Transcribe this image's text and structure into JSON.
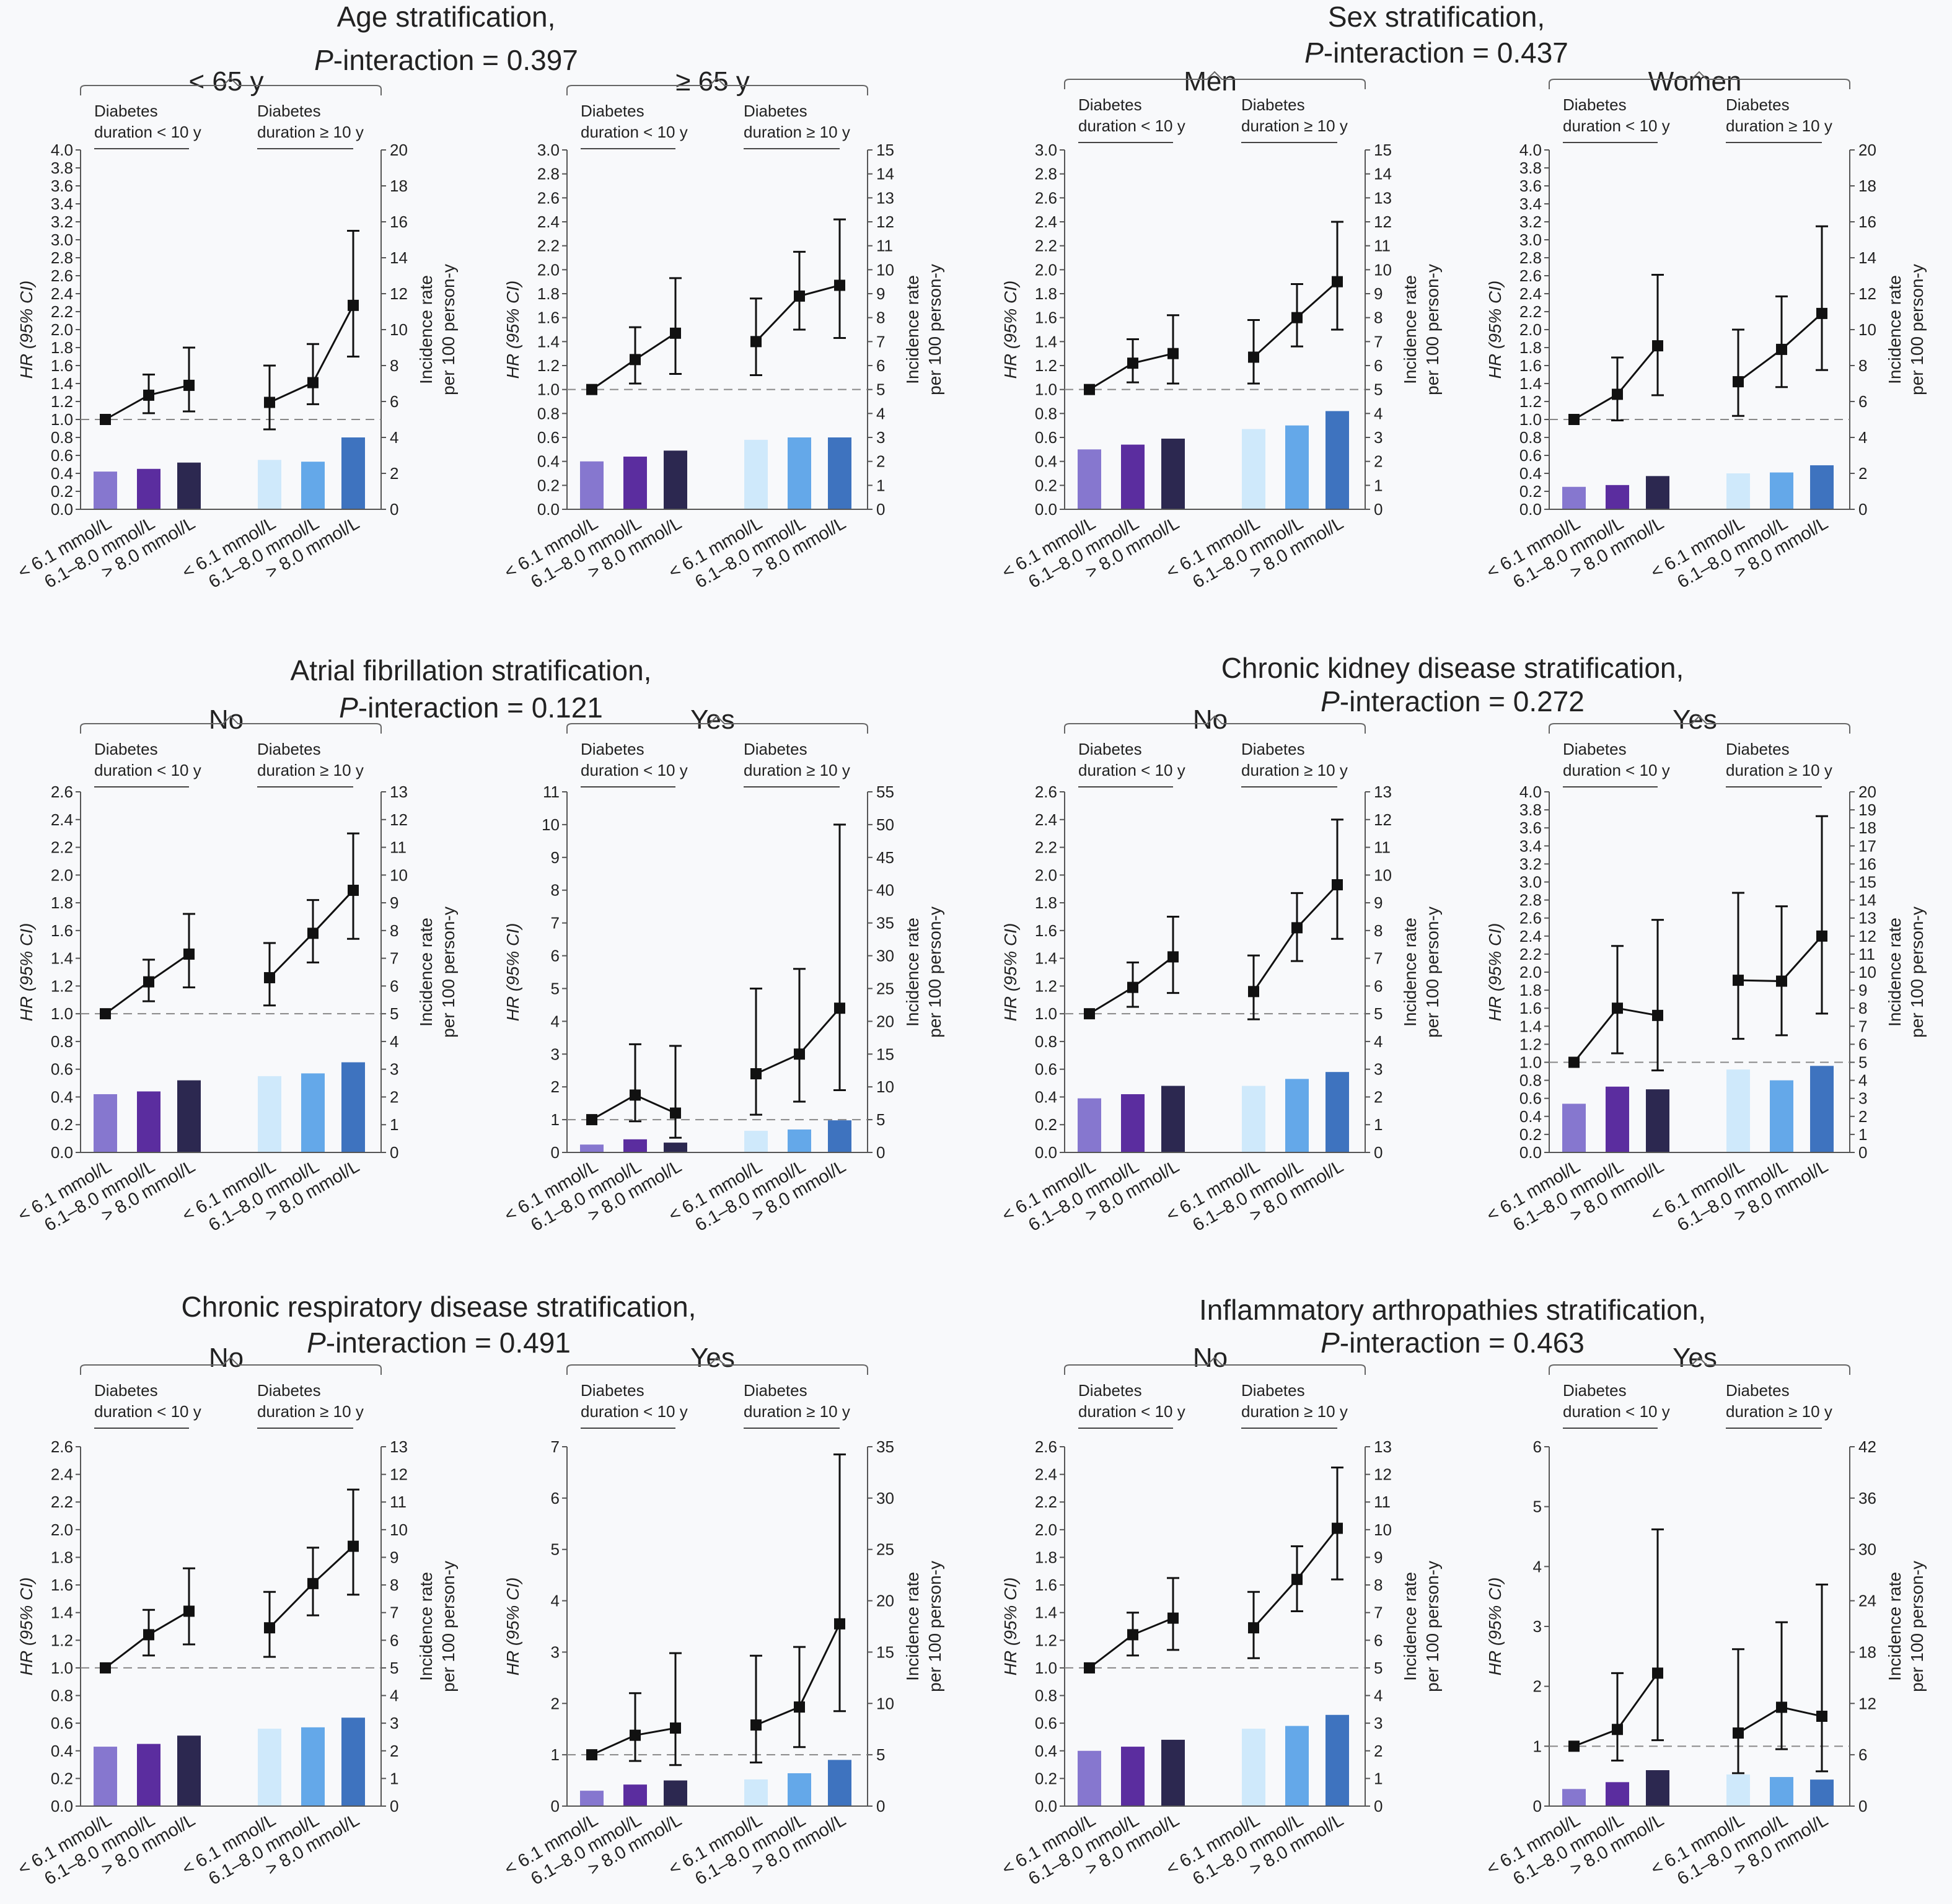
{
  "strata_labels": {
    "hr_axis": "HR (95% CI)",
    "ir_axis_line1": "Incidence rate",
    "ir_axis_line2": "per 100 person-y",
    "group_short_line1": "Diabetes",
    "group_short_line2": "duration < 10 y",
    "group_long_line1": "Diabetes",
    "group_long_line2": "duration ≥ 10 y",
    "categories": [
      "< 6.1 mmol/L",
      "6.1–8.0 mmol/L",
      "> 8.0 mmol/L"
    ]
  },
  "colors": {
    "bars": [
      "#8677cf",
      "#5b2d9f",
      "#2c2850",
      "#cfe9fb",
      "#64a8e9",
      "#3e73bf"
    ],
    "line": "#111111"
  },
  "panels": [
    {
      "title_line1": "Age stratification,",
      "title_line2_italic": "P",
      "title_line2_rest": "-interaction = 0.397",
      "subgroups": [
        "< 65 y",
        "≥ 65 y"
      ]
    },
    {
      "title_line1": "Sex stratification,",
      "title_line2_italic": "P",
      "title_line2_rest": "-interaction = 0.437",
      "subgroups": [
        "Men",
        "Women"
      ]
    },
    {
      "title_line1": "Atrial fibrillation stratification,",
      "title_line2_italic": "P",
      "title_line2_rest": "-interaction = 0.121",
      "subgroups": [
        "No",
        "Yes"
      ]
    },
    {
      "title_line1": "Chronic kidney disease stratification,",
      "title_line2_italic": "P",
      "title_line2_rest": "-interaction = 0.272",
      "subgroups": [
        "No",
        "Yes"
      ]
    },
    {
      "title_line1": "Chronic respiratory disease stratification,",
      "title_line2_italic": "P",
      "title_line2_rest": "-interaction = 0.491",
      "subgroups": [
        "No",
        "Yes"
      ]
    },
    {
      "title_line1": "Inflammatory arthropathies stratification,",
      "title_line2_italic": "P",
      "title_line2_rest": "-interaction = 0.463",
      "subgroups": [
        "No",
        "Yes"
      ]
    }
  ],
  "chart_data": [
    {
      "type": "line+bar",
      "panel": "Age",
      "subgroup": "< 65 y",
      "hr_axis": {
        "min": 0,
        "max": 4.0,
        "step": 0.2
      },
      "ir_axis": {
        "min": 0,
        "max": 20,
        "step": 2
      },
      "hr": [
        1.0,
        1.27,
        1.38,
        1.19,
        1.41,
        2.27
      ],
      "hr_low": [
        1.0,
        1.07,
        1.09,
        0.89,
        1.17,
        1.7
      ],
      "hr_high": [
        1.0,
        1.5,
        1.8,
        1.6,
        1.84,
        3.1
      ],
      "incidence": [
        2.1,
        2.25,
        2.6,
        2.75,
        2.65,
        4.0
      ]
    },
    {
      "type": "line+bar",
      "panel": "Age",
      "subgroup": "≥ 65 y",
      "hr_axis": {
        "min": 0,
        "max": 3.0,
        "step": 0.2
      },
      "ir_axis": {
        "min": 0,
        "max": 15,
        "step": 1
      },
      "hr": [
        1.0,
        1.25,
        1.47,
        1.4,
        1.78,
        1.87
      ],
      "hr_low": [
        1.0,
        1.05,
        1.13,
        1.12,
        1.5,
        1.43
      ],
      "hr_high": [
        1.0,
        1.52,
        1.93,
        1.76,
        2.15,
        2.42
      ],
      "incidence": [
        2.0,
        2.2,
        2.45,
        2.9,
        3.0,
        3.0
      ]
    },
    {
      "type": "line+bar",
      "panel": "Sex",
      "subgroup": "Men",
      "hr_axis": {
        "min": 0,
        "max": 3.0,
        "step": 0.2
      },
      "ir_axis": {
        "min": 0,
        "max": 15,
        "step": 1
      },
      "hr": [
        1.0,
        1.22,
        1.3,
        1.27,
        1.6,
        1.9
      ],
      "hr_low": [
        1.0,
        1.06,
        1.05,
        1.05,
        1.36,
        1.5
      ],
      "hr_high": [
        1.0,
        1.42,
        1.62,
        1.58,
        1.88,
        2.4
      ],
      "incidence": [
        2.5,
        2.7,
        2.95,
        3.35,
        3.5,
        4.1
      ]
    },
    {
      "type": "line+bar",
      "panel": "Sex",
      "subgroup": "Women",
      "hr_axis": {
        "min": 0,
        "max": 4.0,
        "step": 0.2
      },
      "ir_axis": {
        "min": 0,
        "max": 20,
        "step": 2
      },
      "hr": [
        1.0,
        1.28,
        1.82,
        1.42,
        1.78,
        2.18
      ],
      "hr_low": [
        1.0,
        0.99,
        1.27,
        1.04,
        1.36,
        1.55
      ],
      "hr_high": [
        1.0,
        1.69,
        2.61,
        2.0,
        2.37,
        3.15
      ],
      "incidence": [
        1.25,
        1.35,
        1.85,
        2.0,
        2.05,
        2.45
      ]
    },
    {
      "type": "line+bar",
      "panel": "Atrial fibrillation",
      "subgroup": "No",
      "hr_axis": {
        "min": 0,
        "max": 2.6,
        "step": 0.2
      },
      "ir_axis": {
        "min": 0,
        "max": 13,
        "step": 1
      },
      "hr": [
        1.0,
        1.23,
        1.43,
        1.26,
        1.58,
        1.89
      ],
      "hr_low": [
        1.0,
        1.09,
        1.19,
        1.06,
        1.37,
        1.54
      ],
      "hr_high": [
        1.0,
        1.39,
        1.72,
        1.51,
        1.82,
        2.3
      ],
      "incidence": [
        2.1,
        2.2,
        2.6,
        2.75,
        2.85,
        3.25
      ]
    },
    {
      "type": "line+bar",
      "panel": "Atrial fibrillation",
      "subgroup": "Yes",
      "hr_axis": {
        "min": 0,
        "max": 11,
        "step": 1
      },
      "ir_axis": {
        "min": 0,
        "max": 55,
        "step": 5
      },
      "hr": [
        1.0,
        1.75,
        1.2,
        2.4,
        3.0,
        4.4
      ],
      "hr_low": [
        1.0,
        0.95,
        0.45,
        1.15,
        1.55,
        1.9
      ],
      "hr_high": [
        1.0,
        3.3,
        3.25,
        5.0,
        5.6,
        10.0
      ],
      "incidence": [
        1.2,
        2.0,
        1.5,
        3.3,
        3.5,
        4.9
      ]
    },
    {
      "type": "line+bar",
      "panel": "Chronic kidney disease",
      "subgroup": "No",
      "hr_axis": {
        "min": 0,
        "max": 2.6,
        "step": 0.2
      },
      "ir_axis": {
        "min": 0,
        "max": 13,
        "step": 1
      },
      "hr": [
        1.0,
        1.19,
        1.41,
        1.16,
        1.62,
        1.93
      ],
      "hr_low": [
        1.0,
        1.05,
        1.15,
        0.96,
        1.38,
        1.54
      ],
      "hr_high": [
        1.0,
        1.37,
        1.7,
        1.42,
        1.87,
        2.4
      ],
      "incidence": [
        1.95,
        2.1,
        2.4,
        2.4,
        2.65,
        2.9
      ]
    },
    {
      "type": "line+bar",
      "panel": "Chronic kidney disease",
      "subgroup": "Yes",
      "hr_axis": {
        "min": 0,
        "max": 4.0,
        "step": 0.2
      },
      "ir_axis": {
        "min": 0,
        "max": 20,
        "step": 1
      },
      "hr": [
        1.0,
        1.6,
        1.52,
        1.91,
        1.9,
        2.4
      ],
      "hr_low": [
        1.0,
        1.1,
        0.91,
        1.26,
        1.3,
        1.54
      ],
      "hr_high": [
        1.0,
        2.29,
        2.58,
        2.88,
        2.73,
        3.73
      ],
      "incidence": [
        2.7,
        3.65,
        3.5,
        4.6,
        4.0,
        4.8
      ]
    },
    {
      "type": "line+bar",
      "panel": "Chronic respiratory disease",
      "subgroup": "No",
      "hr_axis": {
        "min": 0,
        "max": 2.6,
        "step": 0.2
      },
      "ir_axis": {
        "min": 0,
        "max": 13,
        "step": 1
      },
      "hr": [
        1.0,
        1.24,
        1.41,
        1.29,
        1.61,
        1.88
      ],
      "hr_low": [
        1.0,
        1.09,
        1.17,
        1.08,
        1.38,
        1.53
      ],
      "hr_high": [
        1.0,
        1.42,
        1.72,
        1.55,
        1.87,
        2.29
      ],
      "incidence": [
        2.15,
        2.25,
        2.55,
        2.8,
        2.85,
        3.2
      ]
    },
    {
      "type": "line+bar",
      "panel": "Chronic respiratory disease",
      "subgroup": "Yes",
      "hr_axis": {
        "min": 0,
        "max": 7,
        "step": 1
      },
      "ir_axis": {
        "min": 0,
        "max": 35,
        "step": 5
      },
      "hr": [
        1.0,
        1.38,
        1.52,
        1.58,
        1.93,
        3.55
      ],
      "hr_low": [
        1.0,
        0.88,
        0.8,
        0.85,
        1.15,
        1.85
      ],
      "hr_high": [
        1.0,
        2.2,
        2.98,
        2.93,
        3.1,
        6.85
      ],
      "incidence": [
        1.5,
        2.1,
        2.5,
        2.6,
        3.2,
        4.5
      ]
    },
    {
      "type": "line+bar",
      "panel": "Inflammatory arthropathies",
      "subgroup": "No",
      "hr_axis": {
        "min": 0,
        "max": 2.6,
        "step": 0.2
      },
      "ir_axis": {
        "min": 0,
        "max": 13,
        "step": 1
      },
      "hr": [
        1.0,
        1.24,
        1.36,
        1.29,
        1.64,
        2.01
      ],
      "hr_low": [
        1.0,
        1.09,
        1.13,
        1.07,
        1.41,
        1.64
      ],
      "hr_high": [
        1.0,
        1.4,
        1.65,
        1.55,
        1.88,
        2.45
      ],
      "incidence": [
        2.0,
        2.15,
        2.4,
        2.8,
        2.9,
        3.3
      ]
    },
    {
      "type": "line+bar",
      "panel": "Inflammatory arthropathies",
      "subgroup": "Yes",
      "hr_axis": {
        "min": 0,
        "max": 6,
        "step": 1
      },
      "ir_axis": {
        "min": 0,
        "max": 42,
        "step": 6
      },
      "hr": [
        1.0,
        1.28,
        2.22,
        1.22,
        1.65,
        1.5
      ],
      "hr_low": [
        1.0,
        0.76,
        1.1,
        0.55,
        0.95,
        0.58
      ],
      "hr_high": [
        1.0,
        2.22,
        4.62,
        2.62,
        3.07,
        3.7
      ],
      "incidence": [
        2.0,
        2.8,
        4.2,
        3.7,
        3.4,
        3.1
      ]
    }
  ]
}
